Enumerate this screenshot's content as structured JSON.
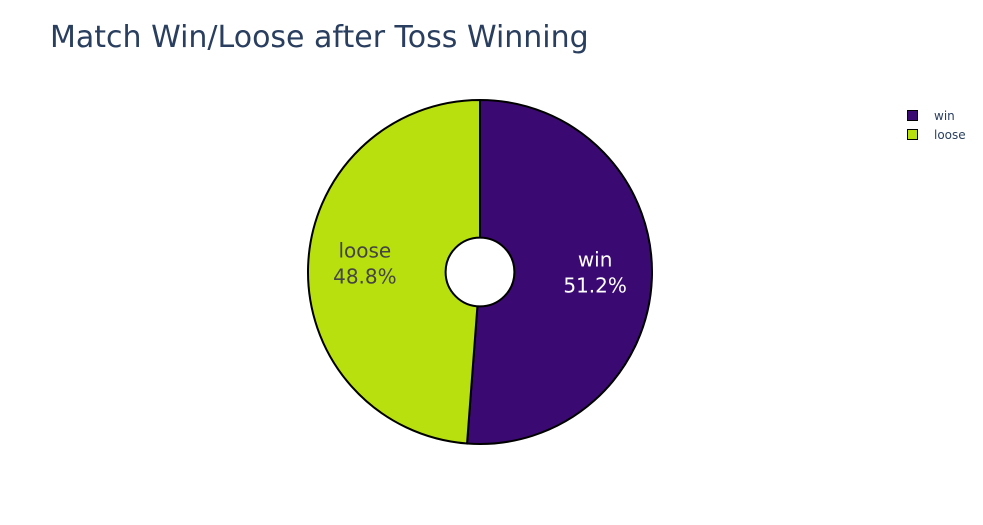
{
  "chart_data": {
    "type": "pie",
    "title": "Match Win/Loose after Toss Winning",
    "labels": [
      "win",
      "loose"
    ],
    "values": [
      51.2,
      48.8
    ],
    "percent_labels": [
      "51.2%",
      "48.8%"
    ],
    "colors": [
      "#3a0a72",
      "#b8e00e"
    ],
    "label_colors": [
      "#ffffff",
      "#444444"
    ],
    "hole": 0.2,
    "legend_position": "top-right",
    "direction": "clockwise",
    "start_angle_deg": 90
  }
}
